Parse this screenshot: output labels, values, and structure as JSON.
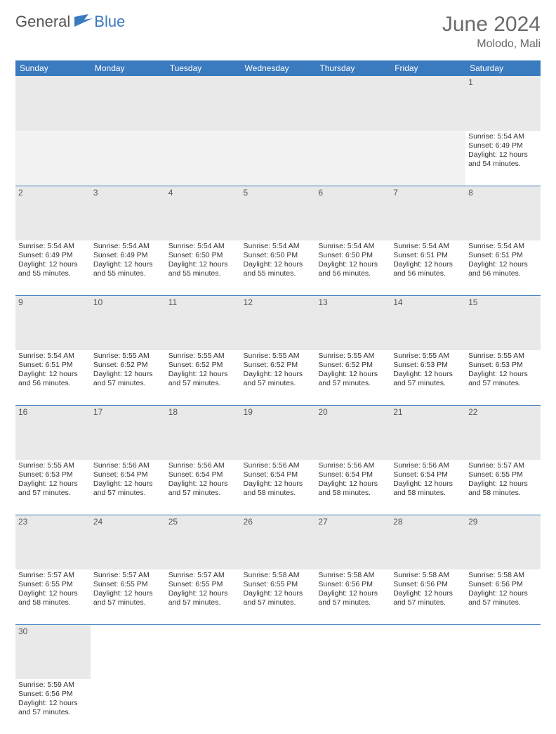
{
  "brand": {
    "part1": "General",
    "part2": "Blue"
  },
  "title": "June 2024",
  "location": "Molodo, Mali",
  "colors": {
    "header_bg": "#3a7abf",
    "header_text": "#ffffff",
    "daynum_bg": "#e9e9e9",
    "border": "#3a7abf",
    "title_color": "#6a6a6a"
  },
  "weekdays": [
    "Sunday",
    "Monday",
    "Tuesday",
    "Wednesday",
    "Thursday",
    "Friday",
    "Saturday"
  ],
  "weeks": [
    [
      null,
      null,
      null,
      null,
      null,
      null,
      {
        "d": "1",
        "sr": "Sunrise: 5:54 AM",
        "ss": "Sunset: 6:49 PM",
        "dl1": "Daylight: 12 hours",
        "dl2": "and 54 minutes."
      }
    ],
    [
      {
        "d": "2",
        "sr": "Sunrise: 5:54 AM",
        "ss": "Sunset: 6:49 PM",
        "dl1": "Daylight: 12 hours",
        "dl2": "and 55 minutes."
      },
      {
        "d": "3",
        "sr": "Sunrise: 5:54 AM",
        "ss": "Sunset: 6:49 PM",
        "dl1": "Daylight: 12 hours",
        "dl2": "and 55 minutes."
      },
      {
        "d": "4",
        "sr": "Sunrise: 5:54 AM",
        "ss": "Sunset: 6:50 PM",
        "dl1": "Daylight: 12 hours",
        "dl2": "and 55 minutes."
      },
      {
        "d": "5",
        "sr": "Sunrise: 5:54 AM",
        "ss": "Sunset: 6:50 PM",
        "dl1": "Daylight: 12 hours",
        "dl2": "and 55 minutes."
      },
      {
        "d": "6",
        "sr": "Sunrise: 5:54 AM",
        "ss": "Sunset: 6:50 PM",
        "dl1": "Daylight: 12 hours",
        "dl2": "and 56 minutes."
      },
      {
        "d": "7",
        "sr": "Sunrise: 5:54 AM",
        "ss": "Sunset: 6:51 PM",
        "dl1": "Daylight: 12 hours",
        "dl2": "and 56 minutes."
      },
      {
        "d": "8",
        "sr": "Sunrise: 5:54 AM",
        "ss": "Sunset: 6:51 PM",
        "dl1": "Daylight: 12 hours",
        "dl2": "and 56 minutes."
      }
    ],
    [
      {
        "d": "9",
        "sr": "Sunrise: 5:54 AM",
        "ss": "Sunset: 6:51 PM",
        "dl1": "Daylight: 12 hours",
        "dl2": "and 56 minutes."
      },
      {
        "d": "10",
        "sr": "Sunrise: 5:55 AM",
        "ss": "Sunset: 6:52 PM",
        "dl1": "Daylight: 12 hours",
        "dl2": "and 57 minutes."
      },
      {
        "d": "11",
        "sr": "Sunrise: 5:55 AM",
        "ss": "Sunset: 6:52 PM",
        "dl1": "Daylight: 12 hours",
        "dl2": "and 57 minutes."
      },
      {
        "d": "12",
        "sr": "Sunrise: 5:55 AM",
        "ss": "Sunset: 6:52 PM",
        "dl1": "Daylight: 12 hours",
        "dl2": "and 57 minutes."
      },
      {
        "d": "13",
        "sr": "Sunrise: 5:55 AM",
        "ss": "Sunset: 6:52 PM",
        "dl1": "Daylight: 12 hours",
        "dl2": "and 57 minutes."
      },
      {
        "d": "14",
        "sr": "Sunrise: 5:55 AM",
        "ss": "Sunset: 6:53 PM",
        "dl1": "Daylight: 12 hours",
        "dl2": "and 57 minutes."
      },
      {
        "d": "15",
        "sr": "Sunrise: 5:55 AM",
        "ss": "Sunset: 6:53 PM",
        "dl1": "Daylight: 12 hours",
        "dl2": "and 57 minutes."
      }
    ],
    [
      {
        "d": "16",
        "sr": "Sunrise: 5:55 AM",
        "ss": "Sunset: 6:53 PM",
        "dl1": "Daylight: 12 hours",
        "dl2": "and 57 minutes."
      },
      {
        "d": "17",
        "sr": "Sunrise: 5:56 AM",
        "ss": "Sunset: 6:54 PM",
        "dl1": "Daylight: 12 hours",
        "dl2": "and 57 minutes."
      },
      {
        "d": "18",
        "sr": "Sunrise: 5:56 AM",
        "ss": "Sunset: 6:54 PM",
        "dl1": "Daylight: 12 hours",
        "dl2": "and 57 minutes."
      },
      {
        "d": "19",
        "sr": "Sunrise: 5:56 AM",
        "ss": "Sunset: 6:54 PM",
        "dl1": "Daylight: 12 hours",
        "dl2": "and 58 minutes."
      },
      {
        "d": "20",
        "sr": "Sunrise: 5:56 AM",
        "ss": "Sunset: 6:54 PM",
        "dl1": "Daylight: 12 hours",
        "dl2": "and 58 minutes."
      },
      {
        "d": "21",
        "sr": "Sunrise: 5:56 AM",
        "ss": "Sunset: 6:54 PM",
        "dl1": "Daylight: 12 hours",
        "dl2": "and 58 minutes."
      },
      {
        "d": "22",
        "sr": "Sunrise: 5:57 AM",
        "ss": "Sunset: 6:55 PM",
        "dl1": "Daylight: 12 hours",
        "dl2": "and 58 minutes."
      }
    ],
    [
      {
        "d": "23",
        "sr": "Sunrise: 5:57 AM",
        "ss": "Sunset: 6:55 PM",
        "dl1": "Daylight: 12 hours",
        "dl2": "and 58 minutes."
      },
      {
        "d": "24",
        "sr": "Sunrise: 5:57 AM",
        "ss": "Sunset: 6:55 PM",
        "dl1": "Daylight: 12 hours",
        "dl2": "and 57 minutes."
      },
      {
        "d": "25",
        "sr": "Sunrise: 5:57 AM",
        "ss": "Sunset: 6:55 PM",
        "dl1": "Daylight: 12 hours",
        "dl2": "and 57 minutes."
      },
      {
        "d": "26",
        "sr": "Sunrise: 5:58 AM",
        "ss": "Sunset: 6:55 PM",
        "dl1": "Daylight: 12 hours",
        "dl2": "and 57 minutes."
      },
      {
        "d": "27",
        "sr": "Sunrise: 5:58 AM",
        "ss": "Sunset: 6:56 PM",
        "dl1": "Daylight: 12 hours",
        "dl2": "and 57 minutes."
      },
      {
        "d": "28",
        "sr": "Sunrise: 5:58 AM",
        "ss": "Sunset: 6:56 PM",
        "dl1": "Daylight: 12 hours",
        "dl2": "and 57 minutes."
      },
      {
        "d": "29",
        "sr": "Sunrise: 5:58 AM",
        "ss": "Sunset: 6:56 PM",
        "dl1": "Daylight: 12 hours",
        "dl2": "and 57 minutes."
      }
    ],
    [
      {
        "d": "30",
        "sr": "Sunrise: 5:59 AM",
        "ss": "Sunset: 6:56 PM",
        "dl1": "Daylight: 12 hours",
        "dl2": "and 57 minutes."
      },
      null,
      null,
      null,
      null,
      null,
      null
    ]
  ]
}
